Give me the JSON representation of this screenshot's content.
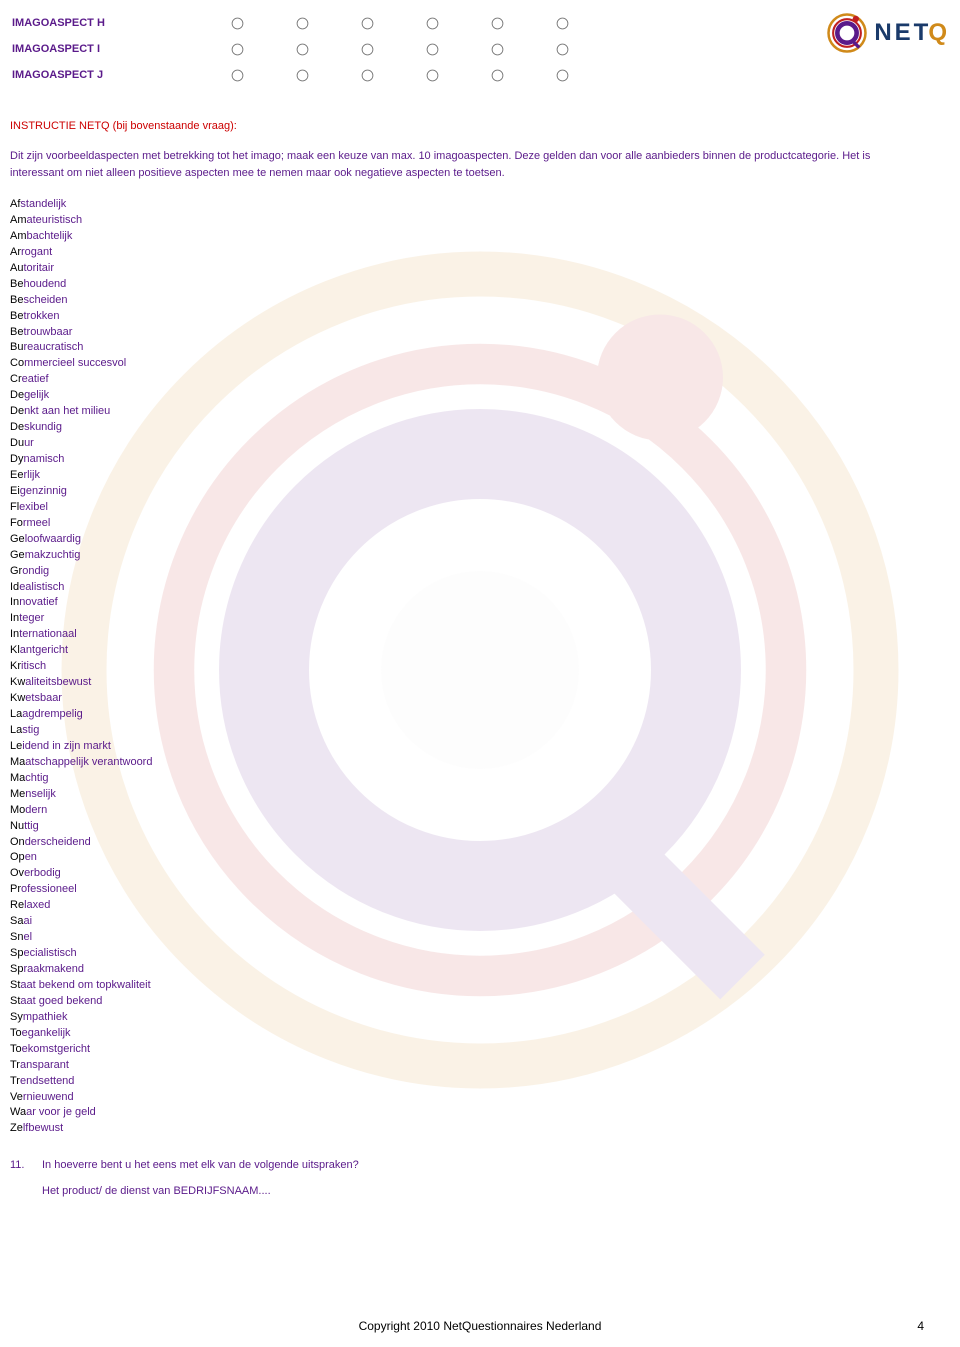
{
  "logo": {
    "text_main": "NET",
    "text_q": "Q"
  },
  "radio_grid": {
    "rows": [
      "IMAGOASPECT H",
      "IMAGOASPECT I",
      "IMAGOASPECT J"
    ],
    "column_count": 6
  },
  "instruction": {
    "header": "INSTRUCTIE NETQ (bij bovenstaande vraag):",
    "body": "Dit zijn voorbeeldaspecten met betrekking tot het imago; maak een keuze van max. 10 imagoaspecten. Deze gelden dan voor alle aanbieders binnen de productcategorie. Het is interessant om niet alleen positieve aspecten mee te nemen maar ook negatieve aspecten te toetsen."
  },
  "words": [
    {
      "p": "Af",
      "s": "standelijk"
    },
    {
      "p": "Am",
      "s": "ateuristisch"
    },
    {
      "p": "Am",
      "s": "bachtelijk"
    },
    {
      "p": "Ar",
      "s": "rogant"
    },
    {
      "p": "Au",
      "s": "toritair"
    },
    {
      "p": "Be",
      "s": "houdend"
    },
    {
      "p": "Be",
      "s": "scheiden"
    },
    {
      "p": "Be",
      "s": "trokken"
    },
    {
      "p": "Be",
      "s": "trouwbaar"
    },
    {
      "p": "Bu",
      "s": "reaucratisch"
    },
    {
      "p": "Co",
      "s": "mmercieel succesvol"
    },
    {
      "p": "Cr",
      "s": "eatief"
    },
    {
      "p": "De",
      "s": "gelijk"
    },
    {
      "p": "De",
      "s": "nkt aan het milieu"
    },
    {
      "p": "De",
      "s": "skundig"
    },
    {
      "p": "Du",
      "s": "ur"
    },
    {
      "p": "Dy",
      "s": "namisch"
    },
    {
      "p": "Ee",
      "s": "rlijk"
    },
    {
      "p": "Ei",
      "s": "genzinnig"
    },
    {
      "p": "Fl",
      "s": "exibel"
    },
    {
      "p": "Fo",
      "s": "rmeel"
    },
    {
      "p": "Ge",
      "s": "loofwaardig"
    },
    {
      "p": "Ge",
      "s": "makzuchtig"
    },
    {
      "p": "Gr",
      "s": "ondig"
    },
    {
      "p": "Id",
      "s": "ealistisch"
    },
    {
      "p": "In",
      "s": "novatief"
    },
    {
      "p": "In",
      "s": "teger"
    },
    {
      "p": "In",
      "s": "ternationaal"
    },
    {
      "p": "Kl",
      "s": "antgericht"
    },
    {
      "p": "Kr",
      "s": "itisch"
    },
    {
      "p": "Kw",
      "s": "aliteitsbewust"
    },
    {
      "p": "Kw",
      "s": "etsbaar"
    },
    {
      "p": "La",
      "s": "agdrempelig"
    },
    {
      "p": "La",
      "s": "stig"
    },
    {
      "p": "Le",
      "s": "idend in zijn markt"
    },
    {
      "p": "Ma",
      "s": "atschappelijk verantwoord"
    },
    {
      "p": "Ma",
      "s": "chtig"
    },
    {
      "p": "Me",
      "s": "nselijk"
    },
    {
      "p": "Mo",
      "s": "dern"
    },
    {
      "p": "Nu",
      "s": "ttig"
    },
    {
      "p": "On",
      "s": "derscheidend"
    },
    {
      "p": "Op",
      "s": "en"
    },
    {
      "p": "Ov",
      "s": "erbodig"
    },
    {
      "p": "Pr",
      "s": "ofessioneel"
    },
    {
      "p": "Re",
      "s": "laxed"
    },
    {
      "p": "Sa",
      "s": "ai"
    },
    {
      "p": "Sn",
      "s": "el"
    },
    {
      "p": "Sp",
      "s": "ecialistisch"
    },
    {
      "p": "Sp",
      "s": "raakmakend"
    },
    {
      "p": "St",
      "s": "aat bekend om topkwaliteit"
    },
    {
      "p": "St",
      "s": "aat goed bekend"
    },
    {
      "p": "Sy",
      "s": "mpathiek"
    },
    {
      "p": "To",
      "s": "egankelijk"
    },
    {
      "p": "To",
      "s": "ekomstgericht"
    },
    {
      "p": "Tr",
      "s": "ansparant"
    },
    {
      "p": "Tr",
      "s": "endsettend"
    },
    {
      "p": "Ve",
      "s": "rnieuwend"
    },
    {
      "p": "Wa",
      "s": "ar voor je geld"
    },
    {
      "p": "Ze",
      "s": "lfbewust"
    }
  ],
  "question": {
    "number": "11.",
    "text": "In hoeverre bent u het eens met elk van de volgende uitspraken?",
    "sub": "Het product/ de dienst van BEDRIJFSNAAM...."
  },
  "footer": {
    "copyright": "Copyright 2010 NetQuestionnaires Nederland",
    "page": "4"
  },
  "colors": {
    "purple": "#5a1a8a",
    "red": "#cc0000",
    "logo_blue": "#1a3a6a",
    "logo_orange": "#d08a1a"
  }
}
